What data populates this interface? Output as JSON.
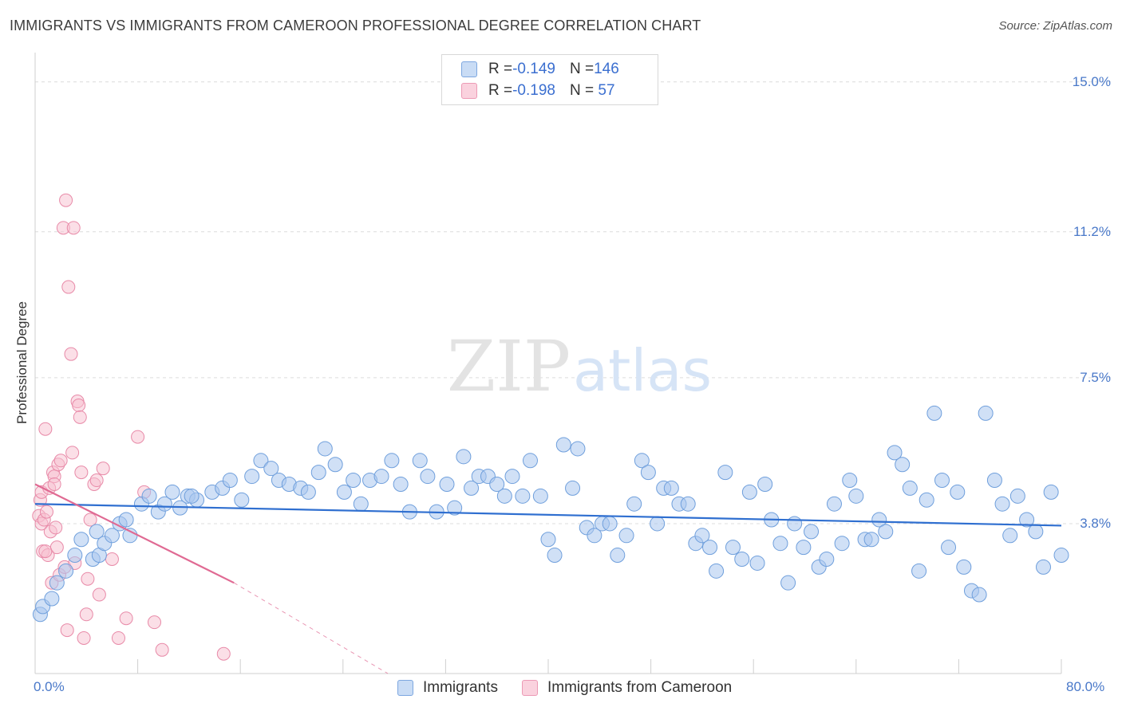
{
  "header": {
    "title": "IMMIGRANTS VS IMMIGRANTS FROM CAMEROON PROFESSIONAL DEGREE CORRELATION CHART",
    "source": "Source: ZipAtlas.com"
  },
  "watermark": {
    "part1": "ZIP",
    "part2": "atlas"
  },
  "legend": {
    "rows": [
      {
        "r_label": "R = ",
        "r_value": "-0.149",
        "n_label": "N = ",
        "n_value": "146",
        "color": "#a9c6ef"
      },
      {
        "r_label": "R = ",
        "r_value": "-0.198",
        "n_label": "N = ",
        "n_value": " 57",
        "color": "#f6b9cb"
      }
    ]
  },
  "colors": {
    "blue_fill": "#a9c6ef",
    "blue_stroke": "#6f9fdc",
    "blue_line": "#2f6fd0",
    "pink_fill": "#f7c0d0",
    "pink_stroke": "#e88aa8",
    "pink_line": "#e06a93",
    "grid": "#dcdcdc",
    "axis_text": "#4a79c9"
  },
  "chart_data": {
    "type": "scatter",
    "title": "IMMIGRANTS VS IMMIGRANTS FROM CAMEROON PROFESSIONAL DEGREE CORRELATION CHART",
    "xlabel": "",
    "ylabel": "Professional Degree",
    "xlim": [
      0,
      80
    ],
    "ylim": [
      0,
      15.5
    ],
    "x_tick_labels": [
      "0.0%",
      "80.0%"
    ],
    "y_ticks": [
      3.8,
      7.5,
      11.2,
      15.0
    ],
    "y_tick_labels": [
      "3.8%",
      "7.5%",
      "11.2%",
      "15.0%"
    ],
    "grid": true,
    "legend_position": "top-center",
    "series": [
      {
        "name": "Immigrants",
        "r": -0.149,
        "n": 146,
        "trend": {
          "x": [
            0,
            80
          ],
          "y": [
            4.3,
            3.75
          ]
        },
        "points": [
          [
            0.4,
            1.5
          ],
          [
            0.6,
            1.7
          ],
          [
            1.3,
            1.9
          ],
          [
            1.7,
            2.3
          ],
          [
            2.4,
            2.6
          ],
          [
            3.1,
            3.0
          ],
          [
            3.6,
            3.4
          ],
          [
            4.5,
            2.9
          ],
          [
            5.0,
            3.0
          ],
          [
            4.8,
            3.6
          ],
          [
            5.4,
            3.3
          ],
          [
            6.0,
            3.5
          ],
          [
            6.6,
            3.8
          ],
          [
            7.4,
            3.5
          ],
          [
            7.1,
            3.9
          ],
          [
            8.3,
            4.3
          ],
          [
            8.9,
            4.5
          ],
          [
            9.6,
            4.1
          ],
          [
            10.1,
            4.3
          ],
          [
            10.7,
            4.6
          ],
          [
            11.3,
            4.2
          ],
          [
            11.9,
            4.5
          ],
          [
            12.6,
            4.4
          ],
          [
            12.2,
            4.5
          ],
          [
            13.8,
            4.6
          ],
          [
            14.6,
            4.7
          ],
          [
            15.2,
            4.9
          ],
          [
            16.1,
            4.4
          ],
          [
            16.9,
            5.0
          ],
          [
            17.6,
            5.4
          ],
          [
            18.4,
            5.2
          ],
          [
            19.0,
            4.9
          ],
          [
            19.8,
            4.8
          ],
          [
            20.7,
            4.7
          ],
          [
            21.3,
            4.6
          ],
          [
            22.1,
            5.1
          ],
          [
            22.6,
            5.7
          ],
          [
            23.4,
            5.3
          ],
          [
            24.1,
            4.6
          ],
          [
            24.8,
            4.9
          ],
          [
            25.4,
            4.3
          ],
          [
            26.1,
            4.9
          ],
          [
            27.0,
            5.0
          ],
          [
            27.8,
            5.4
          ],
          [
            28.5,
            4.8
          ],
          [
            29.2,
            4.1
          ],
          [
            30.0,
            5.4
          ],
          [
            30.6,
            5.0
          ],
          [
            31.3,
            4.1
          ],
          [
            32.1,
            4.8
          ],
          [
            32.7,
            4.2
          ],
          [
            33.4,
            5.5
          ],
          [
            34.0,
            4.7
          ],
          [
            34.6,
            5.0
          ],
          [
            35.3,
            5.0
          ],
          [
            36.0,
            4.8
          ],
          [
            36.6,
            4.5
          ],
          [
            37.2,
            5.0
          ],
          [
            38.0,
            4.5
          ],
          [
            38.6,
            5.4
          ],
          [
            39.4,
            4.5
          ],
          [
            40.0,
            3.4
          ],
          [
            40.5,
            3.0
          ],
          [
            41.2,
            5.8
          ],
          [
            41.9,
            4.7
          ],
          [
            42.3,
            5.7
          ],
          [
            43.0,
            3.7
          ],
          [
            43.6,
            3.5
          ],
          [
            44.2,
            3.8
          ],
          [
            44.8,
            3.8
          ],
          [
            45.4,
            3.0
          ],
          [
            46.1,
            3.5
          ],
          [
            46.7,
            4.3
          ],
          [
            47.3,
            5.4
          ],
          [
            47.8,
            5.1
          ],
          [
            48.5,
            3.8
          ],
          [
            49.0,
            4.7
          ],
          [
            49.6,
            4.7
          ],
          [
            50.2,
            4.3
          ],
          [
            50.9,
            4.3
          ],
          [
            51.5,
            3.3
          ],
          [
            52.0,
            3.5
          ],
          [
            52.6,
            3.2
          ],
          [
            53.1,
            2.6
          ],
          [
            53.8,
            5.1
          ],
          [
            54.4,
            3.2
          ],
          [
            55.1,
            2.9
          ],
          [
            55.7,
            4.6
          ],
          [
            56.3,
            2.8
          ],
          [
            56.9,
            4.8
          ],
          [
            57.4,
            3.9
          ],
          [
            58.1,
            3.3
          ],
          [
            58.7,
            2.3
          ],
          [
            59.2,
            3.8
          ],
          [
            59.9,
            3.2
          ],
          [
            60.5,
            3.6
          ],
          [
            61.1,
            2.7
          ],
          [
            61.7,
            2.9
          ],
          [
            62.3,
            4.3
          ],
          [
            62.9,
            3.3
          ],
          [
            63.5,
            4.9
          ],
          [
            64.0,
            4.5
          ],
          [
            64.7,
            3.4
          ],
          [
            65.2,
            3.4
          ],
          [
            65.8,
            3.9
          ],
          [
            66.3,
            3.6
          ],
          [
            67.0,
            5.6
          ],
          [
            67.6,
            5.3
          ],
          [
            68.2,
            4.7
          ],
          [
            68.9,
            2.6
          ],
          [
            69.5,
            4.4
          ],
          [
            70.1,
            6.6
          ],
          [
            70.7,
            4.9
          ],
          [
            71.2,
            3.2
          ],
          [
            71.9,
            4.6
          ],
          [
            72.4,
            2.7
          ],
          [
            73.0,
            2.1
          ],
          [
            73.6,
            2.0
          ],
          [
            74.1,
            6.6
          ],
          [
            74.8,
            4.9
          ],
          [
            75.4,
            4.3
          ],
          [
            76.0,
            3.5
          ],
          [
            76.6,
            4.5
          ],
          [
            77.3,
            3.9
          ],
          [
            78.0,
            3.6
          ],
          [
            78.6,
            2.7
          ],
          [
            79.2,
            4.6
          ],
          [
            80.0,
            3.0
          ]
        ]
      },
      {
        "name": "Immigrants from Cameroon",
        "r": -0.198,
        "n": 57,
        "trend": {
          "x": [
            0,
            15.5
          ],
          "y": [
            4.8,
            2.3
          ],
          "dashed_to": {
            "x": 27.5,
            "y": 0
          }
        },
        "points": [
          [
            0.3,
            4.0
          ],
          [
            0.4,
            4.4
          ],
          [
            0.5,
            3.8
          ],
          [
            0.5,
            4.6
          ],
          [
            0.6,
            3.1
          ],
          [
            0.7,
            3.9
          ],
          [
            0.8,
            6.2
          ],
          [
            0.9,
            4.1
          ],
          [
            1.0,
            3.0
          ],
          [
            1.1,
            4.7
          ],
          [
            1.2,
            3.6
          ],
          [
            1.3,
            2.3
          ],
          [
            1.4,
            5.1
          ],
          [
            1.5,
            5.0
          ],
          [
            1.6,
            3.7
          ],
          [
            1.7,
            3.2
          ],
          [
            1.8,
            5.3
          ],
          [
            1.9,
            2.5
          ],
          [
            2.0,
            5.4
          ],
          [
            2.2,
            11.3
          ],
          [
            2.3,
            2.7
          ],
          [
            2.4,
            12.0
          ],
          [
            2.5,
            1.1
          ],
          [
            2.6,
            9.8
          ],
          [
            2.8,
            8.1
          ],
          [
            2.9,
            5.6
          ],
          [
            3.0,
            11.3
          ],
          [
            3.1,
            2.8
          ],
          [
            3.3,
            6.9
          ],
          [
            3.4,
            6.8
          ],
          [
            3.5,
            6.5
          ],
          [
            3.6,
            5.1
          ],
          [
            3.8,
            0.9
          ],
          [
            4.0,
            1.5
          ],
          [
            4.1,
            2.4
          ],
          [
            4.3,
            3.9
          ],
          [
            4.6,
            4.8
          ],
          [
            4.8,
            4.9
          ],
          [
            5.0,
            2.0
          ],
          [
            5.3,
            5.2
          ],
          [
            6.0,
            2.9
          ],
          [
            6.5,
            0.9
          ],
          [
            7.1,
            1.4
          ],
          [
            8.0,
            6.0
          ],
          [
            8.5,
            4.6
          ],
          [
            9.3,
            1.3
          ],
          [
            9.9,
            0.6
          ],
          [
            14.7,
            0.5
          ],
          [
            0.8,
            3.1
          ],
          [
            1.5,
            4.8
          ]
        ]
      }
    ]
  }
}
